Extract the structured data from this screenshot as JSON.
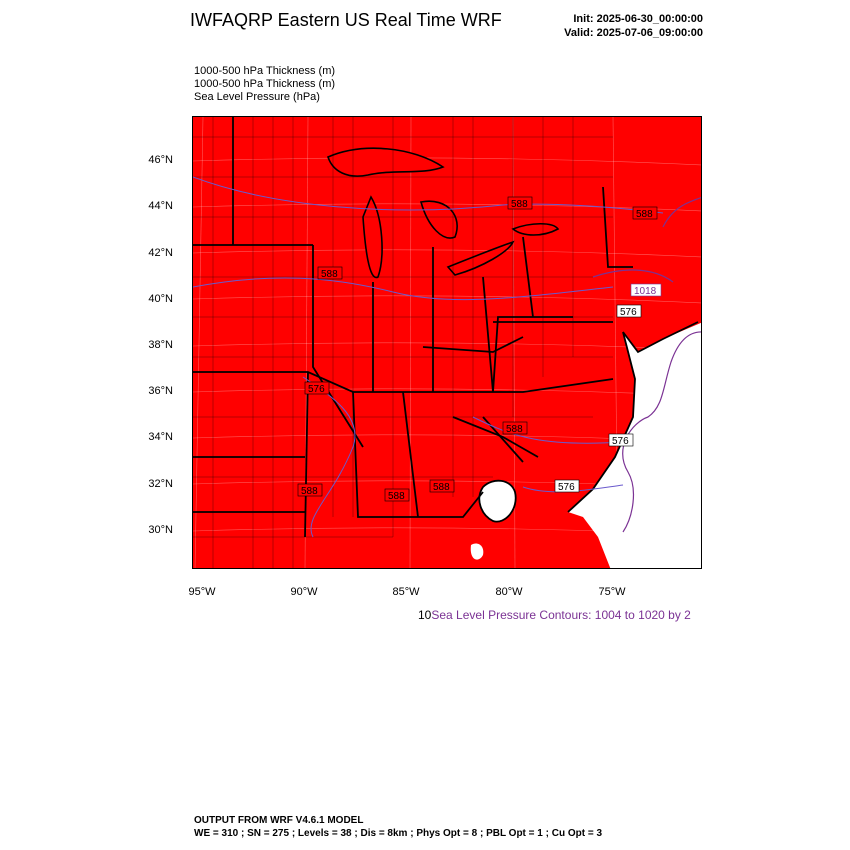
{
  "header": {
    "title": "IWFAQRP Eastern US Real Time WRF",
    "init": "Init: 2025-06-30_00:00:00",
    "valid": "Valid: 2025-07-06_09:00:00"
  },
  "fields": [
    "1000-500 hPa Thickness   (m)",
    "1000-500 hPa Thickness   (m)",
    "Sea Level Pressure   (hPa)"
  ],
  "axes": {
    "lat_labels": [
      "46°N",
      "44°N",
      "42°N",
      "40°N",
      "38°N",
      "36°N",
      "34°N",
      "32°N",
      "30°N"
    ],
    "lon_labels": [
      "95°W",
      "90°W",
      "85°W",
      "80°W",
      "75°W"
    ]
  },
  "contour_labels": {
    "thickness": [
      "588",
      "588",
      "588",
      "588",
      "576",
      "576",
      "576",
      "576",
      "588",
      "588",
      "588"
    ],
    "pressure": [
      "1018"
    ]
  },
  "contour_info": {
    "lead": "10",
    "text": "Sea Level Pressure Contours: 1004 to 1020 by 2"
  },
  "footer": {
    "line1": "OUTPUT FROM WRF V4.6.1 MODEL",
    "line2": "WE = 310 ; SN = 275 ; Levels = 38 ; Dis = 8km ; Phys Opt = 8 ; PBL Opt = 1 ; Cu Opt = 3"
  },
  "colors": {
    "fill": "#ff0000",
    "ocean": "#ffffff",
    "boundaries": "#000000",
    "pressure_contour": "#7b3294",
    "thickness_contour": "#6a5acd"
  }
}
